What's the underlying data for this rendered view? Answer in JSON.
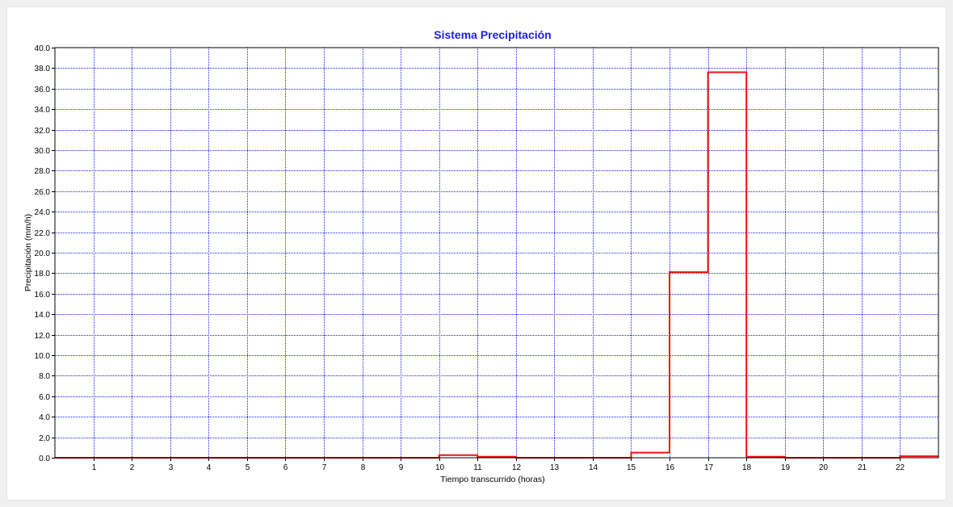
{
  "colors": {
    "title": "#1e1ee6",
    "grid": "#2222dd",
    "series": "#ee1111",
    "axis": "#000000",
    "plot_background": "#ffffff",
    "window_background": "#f0f0f0"
  },
  "chart_data": {
    "type": "line",
    "title": "Sistema Precipitación",
    "xlabel": "Tiempo transcurrido (horas)",
    "ylabel": "Precipitación (mm/h)",
    "xlim": [
      0,
      23
    ],
    "ylim": [
      0,
      40
    ],
    "x_ticks": [
      1,
      2,
      3,
      4,
      5,
      6,
      7,
      8,
      9,
      10,
      11,
      12,
      13,
      14,
      15,
      16,
      17,
      18,
      19,
      20,
      21,
      22
    ],
    "x_tick_labels": [
      "1",
      "2",
      "3",
      "4",
      "5",
      "6",
      "7",
      "8",
      "9",
      "10",
      "11",
      "12",
      "13",
      "14",
      "15",
      "16",
      "17",
      "18",
      "19",
      "20",
      "21",
      "22"
    ],
    "y_ticks": [
      0,
      2,
      4,
      6,
      8,
      10,
      12,
      14,
      16,
      18,
      20,
      22,
      24,
      26,
      28,
      30,
      32,
      34,
      36,
      38,
      40
    ],
    "y_tick_labels": [
      "0.0",
      "2.0",
      "4.0",
      "6.0",
      "8.0",
      "10.0",
      "12.0",
      "14.0",
      "16.0",
      "18.0",
      "20.0",
      "22.0",
      "24.0",
      "26.0",
      "28.0",
      "30.0",
      "32.0",
      "34.0",
      "36.0",
      "38.0",
      "40.0"
    ],
    "grid": true,
    "grid_style": "dotted",
    "legend": "none",
    "series": [
      {
        "line_style": "step",
        "x": [
          0,
          10,
          10,
          11,
          11,
          12,
          12,
          15,
          15,
          16,
          16,
          17,
          17,
          18,
          18,
          19,
          19,
          22,
          22,
          23
        ],
        "y": [
          0,
          0,
          0.25,
          0.25,
          0.1,
          0.1,
          0,
          0,
          0.5,
          0.5,
          18.1,
          18.1,
          37.6,
          37.6,
          0.1,
          0.1,
          0,
          0,
          0.15,
          0.15
        ]
      }
    ]
  }
}
